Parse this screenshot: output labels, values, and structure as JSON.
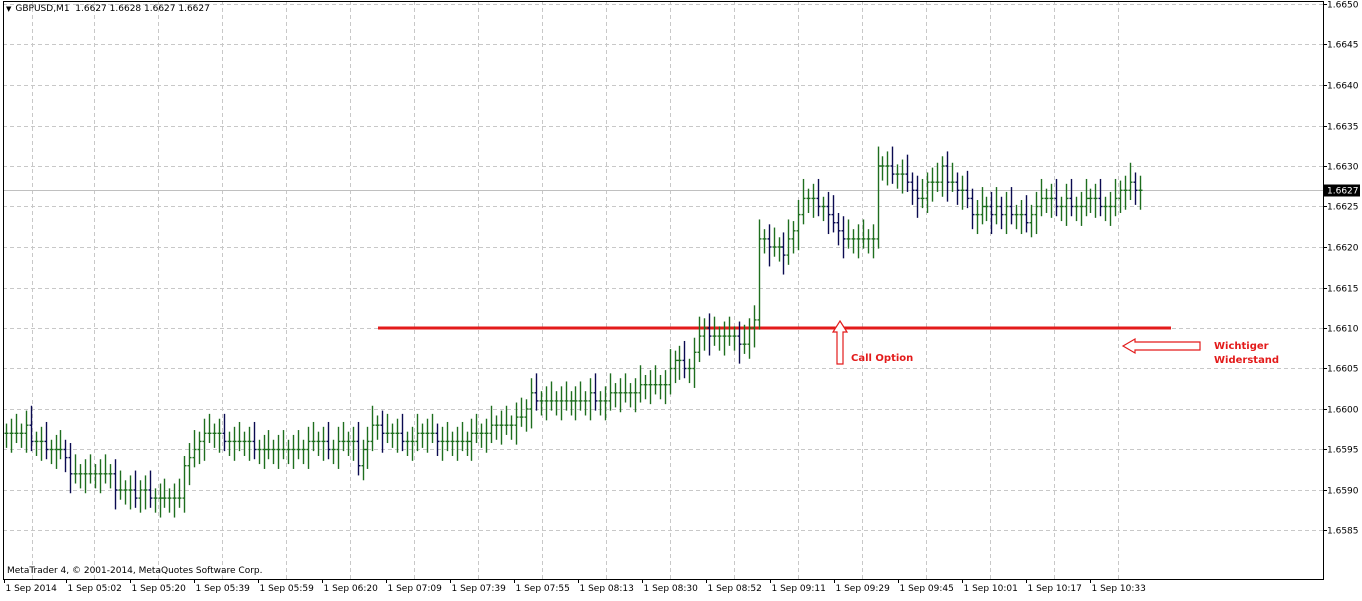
{
  "header": {
    "symbol": "GBPUSD,M1",
    "quote": "1.6627 1.6628 1.6627 1.6627"
  },
  "footer": {
    "copyright": "MetaTrader 4, © 2001-2014, MetaQuotes Software Corp."
  },
  "annotations": {
    "call_option": "Call Option",
    "resistance_line1": "Wichtiger",
    "resistance_line2": "Widerstand"
  },
  "colors": {
    "background": "#ffffff",
    "grid": "#c8c8c8",
    "bull_bar": "#1e6e1e",
    "bear_bar": "#0a0a50",
    "resistance": "#e31b1b",
    "price_label_bg": "#000000"
  },
  "chart_data": {
    "type": "ohlc",
    "title": "GBPUSD,M1",
    "grid": true,
    "ylim": [
      1.658,
      1.665
    ],
    "y_ticks": [
      "1.6650",
      "1.6645",
      "1.6640",
      "1.6635",
      "1.6630",
      "1.6625",
      "1.6620",
      "1.6615",
      "1.6610",
      "1.6605",
      "1.6600",
      "1.6595",
      "1.6590",
      "1.6585"
    ],
    "x_ticks": [
      "1 Sep 2014",
      "1 Sep 05:02",
      "1 Sep 05:20",
      "1 Sep 05:39",
      "1 Sep 05:59",
      "1 Sep 06:20",
      "1 Sep 07:09",
      "1 Sep 07:39",
      "1 Sep 07:55",
      "1 Sep 08:13",
      "1 Sep 08:30",
      "1 Sep 08:52",
      "1 Sep 09:11",
      "1 Sep 09:29",
      "1 Sep 09:45",
      "1 Sep 10:01",
      "1 Sep 10:17",
      "1 Sep 10:33"
    ],
    "current_price": "1.6627",
    "resistance_level": 1.661,
    "close": [
      1.6597,
      1.6597,
      1.6597,
      1.6597,
      1.6598,
      1.6596,
      1.6596,
      1.6596,
      1.6595,
      1.6595,
      1.6595,
      1.6595,
      1.6594,
      1.6592,
      1.6592,
      1.6592,
      1.6592,
      1.6592,
      1.6592,
      1.6592,
      1.6592,
      1.6592,
      1.659,
      1.659,
      1.659,
      1.659,
      1.6589,
      1.659,
      1.659,
      1.6589,
      1.6589,
      1.6589,
      1.6589,
      1.6589,
      1.6589,
      1.6589,
      1.6593,
      1.6594,
      1.6595,
      1.6596,
      1.6597,
      1.6597,
      1.6597,
      1.6597,
      1.6596,
      1.6596,
      1.6596,
      1.6596,
      1.6596,
      1.6596,
      1.6595,
      1.6595,
      1.6595,
      1.6595,
      1.6595,
      1.6595,
      1.6595,
      1.6595,
      1.6595,
      1.6595,
      1.6595,
      1.6596,
      1.6596,
      1.6596,
      1.6596,
      1.6595,
      1.6595,
      1.6596,
      1.6596,
      1.6596,
      1.6596,
      1.6593,
      1.6595,
      1.6596,
      1.6598,
      1.6598,
      1.6597,
      1.6597,
      1.6597,
      1.6597,
      1.6596,
      1.6596,
      1.6596,
      1.6597,
      1.6597,
      1.6597,
      1.6597,
      1.6596,
      1.6596,
      1.6596,
      1.6596,
      1.6596,
      1.6596,
      1.6596,
      1.6597,
      1.6597,
      1.6597,
      1.6597,
      1.6598,
      1.6598,
      1.6598,
      1.6598,
      1.6598,
      1.6599,
      1.6599,
      1.66,
      1.6602,
      1.6601,
      1.6601,
      1.6601,
      1.6601,
      1.6601,
      1.6601,
      1.6601,
      1.6601,
      1.6601,
      1.6601,
      1.6601,
      1.6602,
      1.6601,
      1.6601,
      1.6601,
      1.6602,
      1.6602,
      1.6602,
      1.6602,
      1.6602,
      1.6602,
      1.6603,
      1.6603,
      1.6603,
      1.6603,
      1.6603,
      1.6603,
      1.6605,
      1.6606,
      1.6606,
      1.6605,
      1.6605,
      1.6607,
      1.6609,
      1.661,
      1.6609,
      1.6609,
      1.6609,
      1.6609,
      1.6609,
      1.6609,
      1.6608,
      1.6608,
      1.661,
      1.6611,
      1.6621,
      1.6621,
      1.662,
      1.662,
      1.662,
      1.6619,
      1.6621,
      1.6622,
      1.6624,
      1.6626,
      1.6626,
      1.6626,
      1.6625,
      1.6625,
      1.6624,
      1.6623,
      1.6622,
      1.6621,
      1.6621,
      1.6621,
      1.6621,
      1.6621,
      1.6621,
      1.6621,
      1.663,
      1.663,
      1.663,
      1.6629,
      1.6629,
      1.6629,
      1.6628,
      1.6627,
      1.6626,
      1.6626,
      1.6628,
      1.6628,
      1.6628,
      1.663,
      1.6628,
      1.6628,
      1.6627,
      1.6627,
      1.6626,
      1.6624,
      1.6624,
      1.6625,
      1.6625,
      1.6624,
      1.6625,
      1.6624,
      1.6625,
      1.6624,
      1.6624,
      1.6624,
      1.6623,
      1.6624,
      1.6625,
      1.6626,
      1.6626,
      1.6626,
      1.6625,
      1.6625,
      1.6626,
      1.6625,
      1.6625,
      1.6625,
      1.6626,
      1.6626,
      1.6626,
      1.6625,
      1.6625,
      1.6625,
      1.6626,
      1.6627,
      1.6627,
      1.6628,
      1.6627,
      1.6627
    ]
  }
}
